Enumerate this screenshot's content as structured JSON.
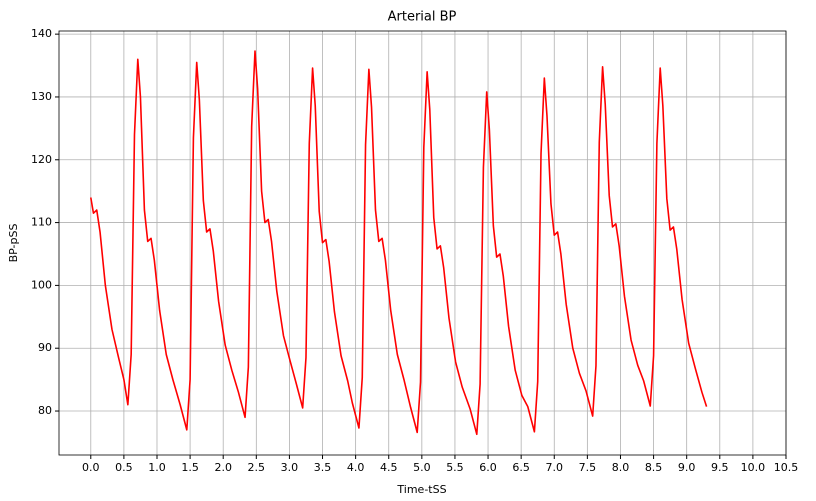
{
  "chart_data": {
    "type": "line",
    "title": "Arterial BP",
    "x_label": "Time-tSS",
    "y_label": "BP-pSS",
    "x": [
      0.0,
      0.04,
      0.09,
      0.14,
      0.22,
      0.32,
      0.42,
      0.5,
      0.56,
      0.61,
      0.66,
      0.71,
      0.75,
      0.81,
      0.86,
      0.91,
      0.96,
      1.04,
      1.14,
      1.24,
      1.35,
      1.45,
      1.5,
      1.55,
      1.6,
      1.64,
      1.7,
      1.75,
      1.8,
      1.85,
      1.93,
      2.03,
      2.13,
      2.23,
      2.33,
      2.38,
      2.43,
      2.48,
      2.52,
      2.58,
      2.63,
      2.68,
      2.73,
      2.81,
      2.91,
      3.01,
      3.1,
      3.2,
      3.25,
      3.3,
      3.35,
      3.39,
      3.45,
      3.5,
      3.55,
      3.6,
      3.68,
      3.78,
      3.88,
      3.95,
      4.05,
      4.1,
      4.15,
      4.2,
      4.24,
      4.3,
      4.35,
      4.4,
      4.45,
      4.53,
      4.63,
      4.73,
      4.83,
      4.93,
      4.98,
      5.03,
      5.08,
      5.12,
      5.18,
      5.23,
      5.28,
      5.33,
      5.41,
      5.51,
      5.61,
      5.73,
      5.83,
      5.88,
      5.93,
      5.98,
      6.02,
      6.08,
      6.13,
      6.18,
      6.23,
      6.31,
      6.41,
      6.51,
      6.6,
      6.7,
      6.75,
      6.8,
      6.85,
      6.89,
      6.95,
      7.0,
      7.05,
      7.1,
      7.18,
      7.28,
      7.38,
      7.48,
      7.58,
      7.63,
      7.68,
      7.73,
      7.77,
      7.83,
      7.88,
      7.93,
      7.98,
      8.06,
      8.16,
      8.26,
      8.35,
      8.45,
      8.5,
      8.55,
      8.6,
      8.64,
      8.7,
      8.75,
      8.8,
      8.85,
      8.93,
      9.03,
      9.13,
      9.23,
      9.3
    ],
    "series": [
      {
        "name": "Arterial BP",
        "color": "#ff0000",
        "values": [
          114,
          111.5,
          112,
          108.5,
          100,
          93,
          88.5,
          85,
          81,
          89,
          124,
          136,
          130,
          112,
          107,
          107.5,
          104,
          96,
          89,
          85,
          81,
          77,
          85,
          123.5,
          135.5,
          129.5,
          113.5,
          108.5,
          109,
          105.5,
          97.5,
          90.5,
          86.5,
          83,
          79,
          87,
          125.3,
          137.3,
          131.3,
          115,
          110,
          110.5,
          107,
          99,
          92,
          88,
          84.5,
          80.5,
          88.5,
          122.6,
          134.6,
          128.6,
          111.8,
          106.8,
          107.3,
          103.8,
          95.8,
          88.8,
          84.8,
          81.3,
          77.3,
          85.3,
          122.4,
          134.4,
          128.4,
          112,
          107,
          107.5,
          104,
          96,
          89,
          85,
          80.6,
          76.6,
          84.6,
          122,
          134,
          128,
          110.8,
          105.8,
          106.3,
          102.8,
          94.8,
          87.8,
          83.8,
          80.3,
          76.3,
          84.3,
          118.8,
          130.8,
          124.8,
          109.5,
          104.5,
          105,
          101.5,
          93.5,
          86.5,
          82.5,
          80.7,
          76.7,
          84.7,
          121,
          133,
          127,
          113,
          108,
          108.5,
          105,
          97,
          90,
          86,
          83.2,
          79.2,
          87.2,
          122.8,
          134.8,
          128.8,
          114.3,
          109.3,
          109.8,
          106.3,
          98.3,
          91.3,
          87.3,
          84.8,
          80.8,
          88.8,
          122.6,
          134.6,
          128.6,
          113.8,
          108.8,
          109.3,
          105.8,
          97.8,
          90.8,
          86.8,
          83,
          80.7
        ]
      }
    ],
    "xlim": [
      -0.48,
      10.5
    ],
    "ylim": [
      73,
      140.5
    ],
    "xticks": [
      {
        "value": 0,
        "label": "0.0"
      },
      0.5,
      {
        "value": 1,
        "label": "1.0"
      },
      1.5,
      {
        "value": 2,
        "label": "2.0"
      },
      2.5,
      {
        "value": 3,
        "label": "3.0"
      },
      3.5,
      {
        "value": 4,
        "label": "4.0"
      },
      4.5,
      {
        "value": 5,
        "label": "5.0"
      },
      5.5,
      {
        "value": 6,
        "label": "6.0"
      },
      6.5,
      {
        "value": 7,
        "label": "7.0"
      },
      7.5,
      {
        "value": 8,
        "label": "8.0"
      },
      8.5,
      {
        "value": 9,
        "label": "9.0"
      },
      9.5,
      {
        "value": 10,
        "label": "10.0"
      },
      10.5
    ],
    "yticks": [
      80,
      90,
      100,
      110,
      120,
      130,
      140
    ],
    "grid": true
  }
}
